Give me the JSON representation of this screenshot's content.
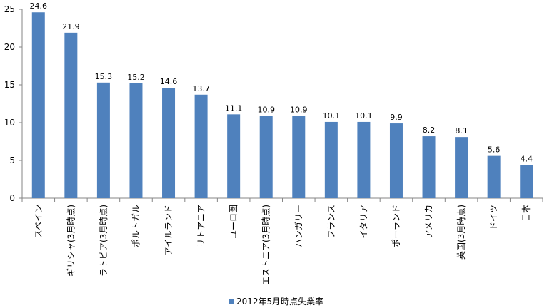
{
  "chart_data": {
    "type": "bar",
    "categories": [
      "スペイン",
      "ギリシャ(3月時点)",
      "ラトビア(3月時点)",
      "ポルトガル",
      "アイルランド",
      "リトアニア",
      "ユーロ圏",
      "エストニア(3月時点)",
      "ハンガリー",
      "フランス",
      "イタリア",
      "ポーランド",
      "アメリカ",
      "英国(3月時点)",
      "ドイツ",
      "日本"
    ],
    "series": [
      {
        "name": "2012年5月時点失業率",
        "values": [
          24.6,
          21.9,
          15.3,
          15.2,
          14.6,
          13.7,
          11.1,
          10.9,
          10.9,
          10.1,
          10.1,
          9.9,
          8.2,
          8.1,
          5.6,
          4.4
        ]
      }
    ],
    "data_labels": [
      "24.6",
      "21.9",
      "15.3",
      "15.2",
      "14.6",
      "13.7",
      "11.1",
      "10.9",
      "10.9",
      "10.1",
      "10.1",
      "9.9",
      "8.2",
      "8.1",
      "5.6",
      "4.4"
    ],
    "y_ticks": [
      0,
      5,
      10,
      15,
      20,
      25
    ],
    "ylim": [
      0,
      25
    ],
    "grid": false,
    "legend_position": "bottom",
    "bar_color": "#4f81bd",
    "axis_color": "#868686"
  }
}
